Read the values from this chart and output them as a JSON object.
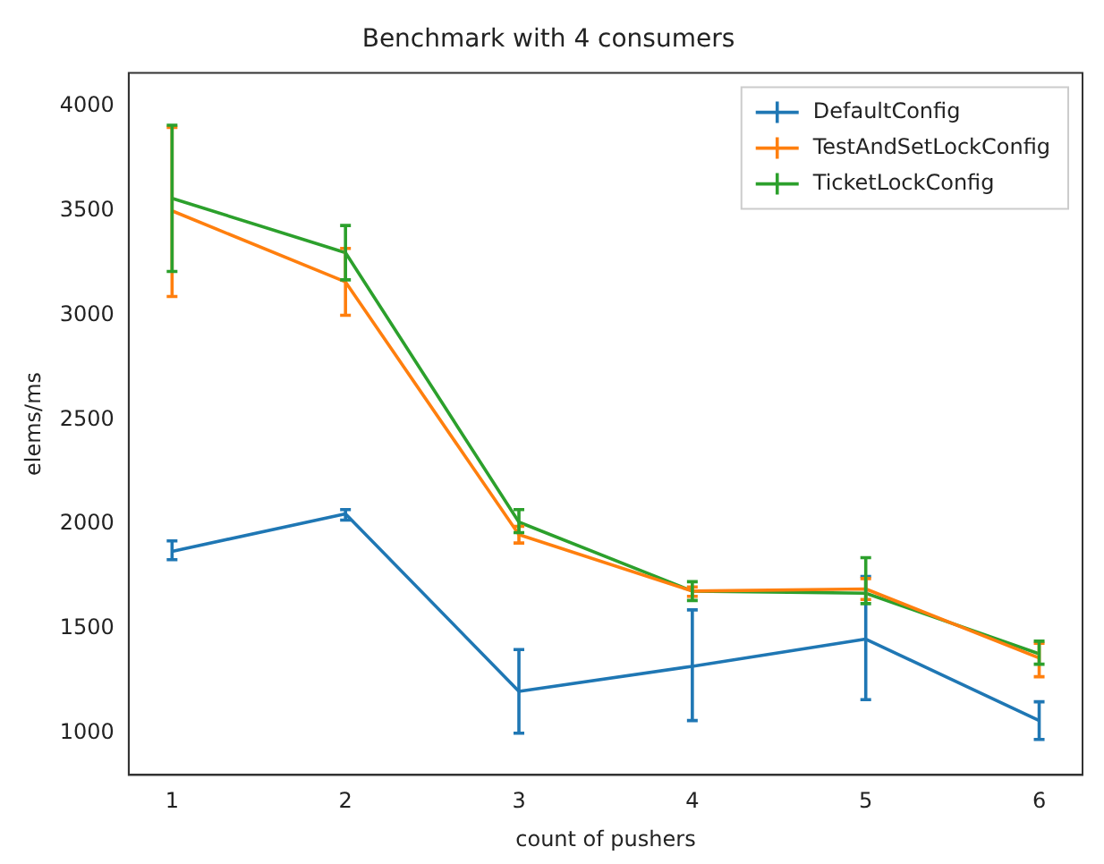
{
  "chart_data": {
    "type": "line",
    "title": "Benchmark with 4 consumers",
    "xlabel": "count of pushers",
    "ylabel": "elems/ms",
    "x": [
      1,
      2,
      3,
      4,
      5,
      6
    ],
    "xlim": [
      0.75,
      6.25
    ],
    "xticks": [
      1,
      2,
      3,
      4,
      5,
      6
    ],
    "ylim": [
      800,
      4160
    ],
    "yticks": [
      1000,
      1500,
      2000,
      2500,
      3000,
      3500,
      4000
    ],
    "legend": "top right",
    "grid": false,
    "marker": "none",
    "line_style": "solid",
    "series": [
      {
        "name": "DefaultConfig",
        "color": "#1f77b4",
        "values": [
          1870,
          2050,
          1200,
          1320,
          1450,
          1060
        ],
        "errors": [
          [
            1830,
            1920
          ],
          [
            2020,
            2070
          ],
          [
            1000,
            1400
          ],
          [
            1060,
            1590
          ],
          [
            1160,
            1750
          ],
          [
            970,
            1150
          ]
        ]
      },
      {
        "name": "TestAndSetLockConfig",
        "color": "#ff7f0e",
        "values": [
          3500,
          3160,
          1950,
          1680,
          1690,
          1360
        ],
        "errors": [
          [
            3090,
            3900
          ],
          [
            3000,
            3320
          ],
          [
            1910,
            1990
          ],
          [
            1655,
            1700
          ],
          [
            1640,
            1740
          ],
          [
            1270,
            1430
          ]
        ]
      },
      {
        "name": "TicketLockConfig",
        "color": "#2ca02c",
        "values": [
          3560,
          3300,
          2010,
          1680,
          1670,
          1380
        ],
        "errors": [
          [
            3210,
            3910
          ],
          [
            3170,
            3430
          ],
          [
            1960,
            2070
          ],
          [
            1635,
            1725
          ],
          [
            1620,
            1840
          ],
          [
            1330,
            1440
          ]
        ]
      }
    ]
  }
}
